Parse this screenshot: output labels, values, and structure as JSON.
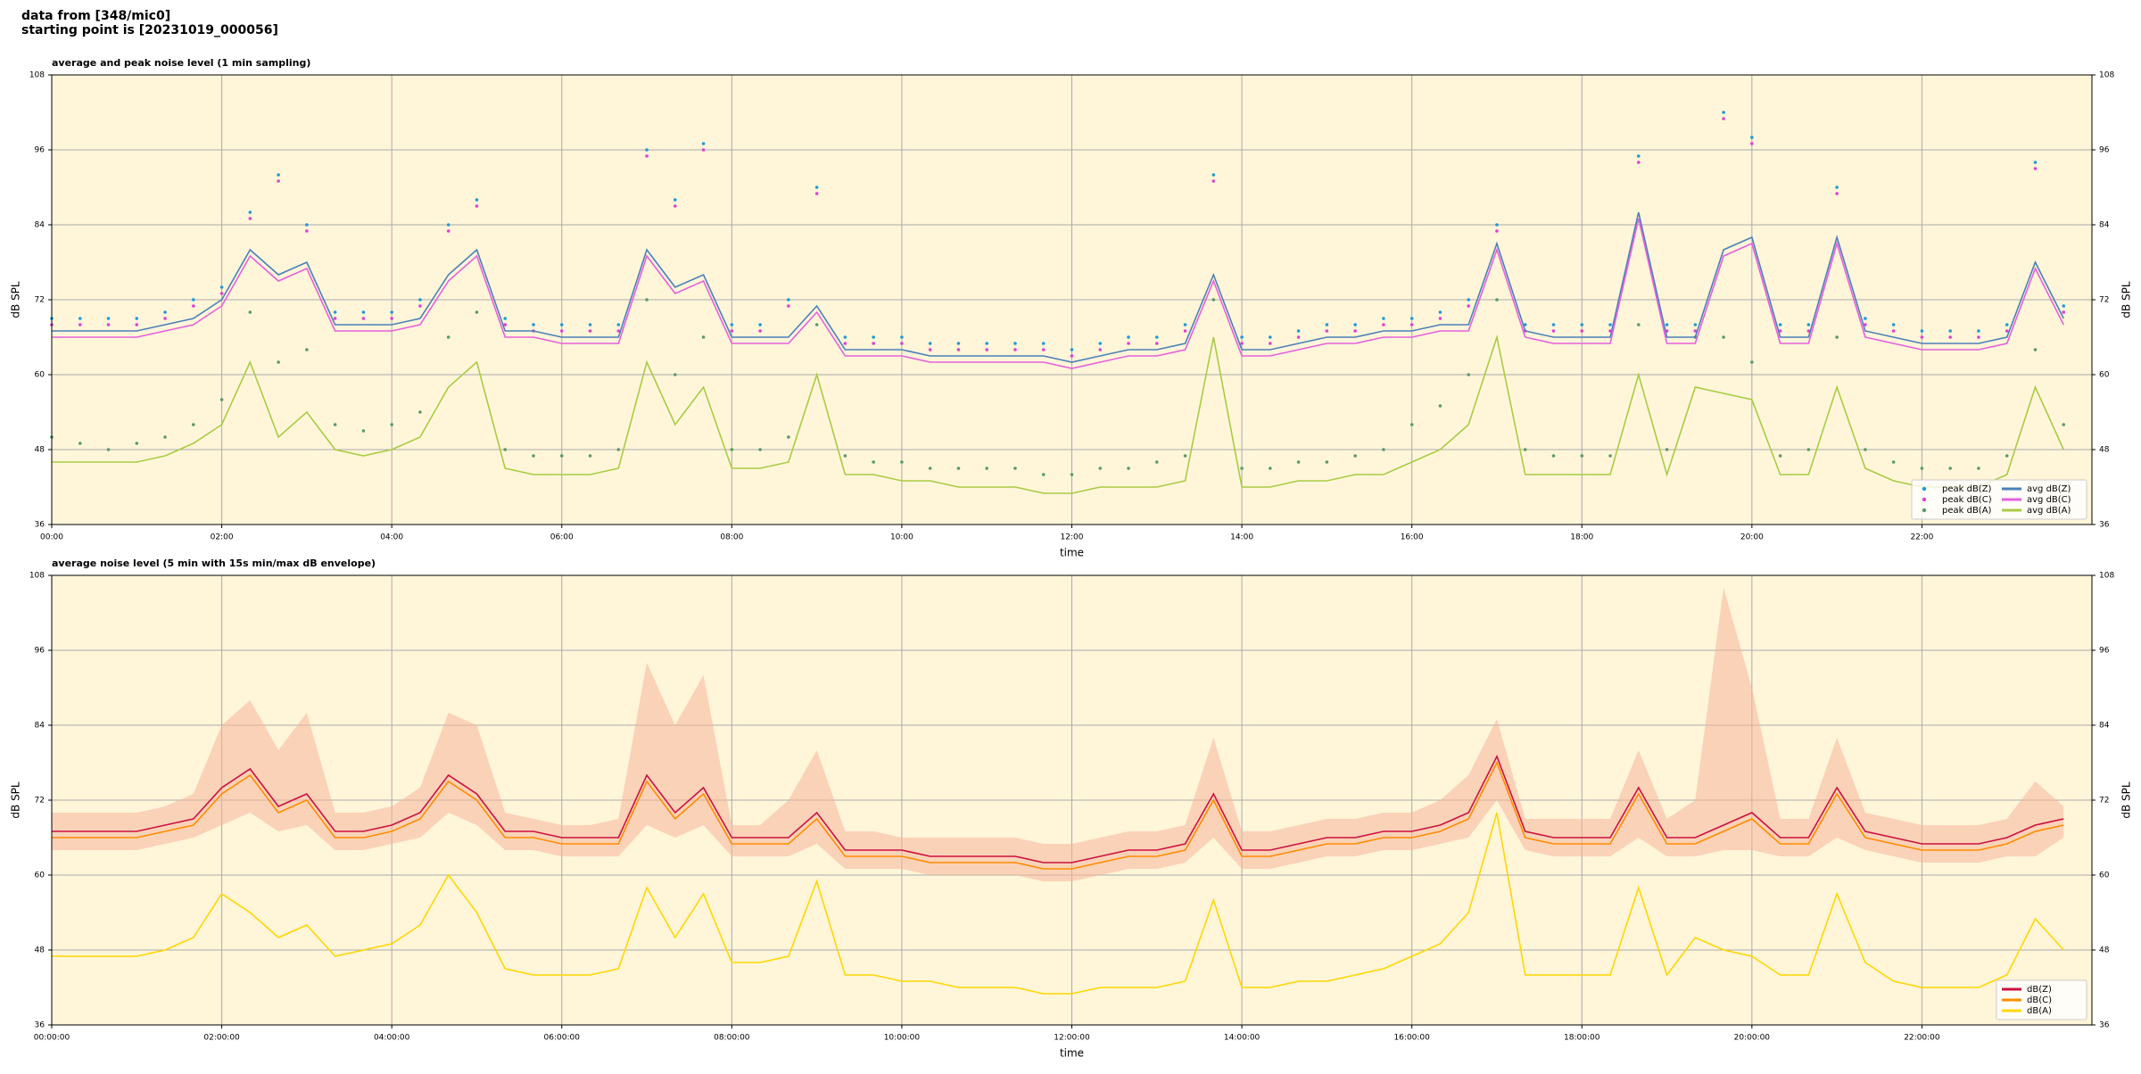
{
  "header": [
    "data from [348/mic0]",
    "starting point is [20231019_000056]"
  ],
  "chart_data": [
    {
      "type": "line",
      "title": "average and peak noise level (1 min sampling)",
      "xlabel": "time",
      "ylabel": "dB SPL",
      "legend": "lower right",
      "grid": true,
      "background": "#fff5d9",
      "xlim": [
        0,
        1440
      ],
      "ylim": [
        36,
        108
      ],
      "yticks": [
        36,
        48,
        60,
        72,
        84,
        96,
        108
      ],
      "xticks": [
        {
          "value": 0,
          "label": "00:00"
        },
        {
          "value": 120,
          "label": "02:00"
        },
        {
          "value": 240,
          "label": "04:00"
        },
        {
          "value": 360,
          "label": "06:00"
        },
        {
          "value": 480,
          "label": "08:00"
        },
        {
          "value": 600,
          "label": "10:00"
        },
        {
          "value": 720,
          "label": "12:00"
        },
        {
          "value": 840,
          "label": "14:00"
        },
        {
          "value": 960,
          "label": "16:00"
        },
        {
          "value": 1080,
          "label": "18:00"
        },
        {
          "value": 1200,
          "label": "20:00"
        },
        {
          "value": 1320,
          "label": "22:00"
        }
      ],
      "x": [
        0,
        20,
        40,
        60,
        80,
        100,
        120,
        140,
        160,
        180,
        200,
        220,
        240,
        260,
        280,
        300,
        320,
        340,
        360,
        380,
        400,
        420,
        440,
        460,
        480,
        500,
        520,
        540,
        560,
        580,
        600,
        620,
        640,
        660,
        680,
        700,
        720,
        740,
        760,
        780,
        800,
        820,
        840,
        860,
        880,
        900,
        920,
        940,
        960,
        980,
        1000,
        1020,
        1040,
        1060,
        1080,
        1100,
        1120,
        1140,
        1160,
        1180,
        1200,
        1220,
        1240,
        1260,
        1280,
        1300,
        1320,
        1340,
        1360,
        1380,
        1400,
        1420
      ],
      "series": [
        {
          "name": "peak dB(Z)",
          "marker": "dot",
          "color": "#1f9bd6",
          "values": [
            69,
            69,
            69,
            69,
            70,
            72,
            74,
            86,
            92,
            84,
            70,
            70,
            70,
            72,
            84,
            88,
            69,
            68,
            68,
            68,
            68,
            96,
            88,
            97,
            68,
            68,
            72,
            90,
            66,
            66,
            66,
            65,
            65,
            65,
            65,
            65,
            64,
            65,
            66,
            66,
            68,
            92,
            66,
            66,
            67,
            68,
            68,
            69,
            69,
            70,
            72,
            84,
            68,
            68,
            68,
            68,
            95,
            68,
            68,
            102,
            98,
            68,
            68,
            90,
            69,
            68,
            67,
            67,
            67,
            68,
            94,
            71
          ]
        },
        {
          "name": "peak dB(C)",
          "marker": "dot",
          "color": "#e040d0",
          "values": [
            68,
            68,
            68,
            68,
            69,
            71,
            73,
            85,
            91,
            83,
            69,
            69,
            69,
            71,
            83,
            87,
            68,
            67,
            67,
            67,
            67,
            95,
            87,
            96,
            67,
            67,
            71,
            89,
            65,
            65,
            65,
            64,
            64,
            64,
            64,
            64,
            63,
            64,
            65,
            65,
            67,
            91,
            65,
            65,
            66,
            67,
            67,
            68,
            68,
            69,
            71,
            83,
            67,
            67,
            67,
            67,
            94,
            67,
            67,
            101,
            97,
            67,
            67,
            89,
            68,
            67,
            66,
            66,
            66,
            67,
            93,
            70
          ]
        },
        {
          "name": "peak dB(A)",
          "marker": "dot",
          "color": "#5a9a6a",
          "values": [
            50,
            49,
            48,
            49,
            50,
            52,
            56,
            70,
            62,
            64,
            52,
            51,
            52,
            54,
            66,
            70,
            48,
            47,
            47,
            47,
            48,
            72,
            60,
            66,
            48,
            48,
            50,
            68,
            47,
            46,
            46,
            45,
            45,
            45,
            45,
            44,
            44,
            45,
            45,
            46,
            47,
            72,
            45,
            45,
            46,
            46,
            47,
            48,
            52,
            55,
            60,
            72,
            48,
            47,
            47,
            47,
            68,
            48,
            66,
            66,
            62,
            47,
            48,
            66,
            48,
            46,
            45,
            45,
            45,
            47,
            64,
            52
          ]
        },
        {
          "name": "avg dB(Z)",
          "marker": "line",
          "color": "#4a80b8",
          "values": [
            67,
            67,
            67,
            67,
            68,
            69,
            72,
            80,
            76,
            78,
            68,
            68,
            68,
            69,
            76,
            80,
            67,
            67,
            66,
            66,
            66,
            80,
            74,
            76,
            66,
            66,
            66,
            71,
            64,
            64,
            64,
            63,
            63,
            63,
            63,
            63,
            62,
            63,
            64,
            64,
            65,
            76,
            64,
            64,
            65,
            66,
            66,
            67,
            67,
            68,
            68,
            81,
            67,
            66,
            66,
            66,
            86,
            66,
            66,
            80,
            82,
            66,
            66,
            82,
            67,
            66,
            65,
            65,
            65,
            66,
            78,
            69
          ]
        },
        {
          "name": "avg dB(C)",
          "marker": "line",
          "color": "#e660dc",
          "values": [
            66,
            66,
            66,
            66,
            67,
            68,
            71,
            79,
            75,
            77,
            67,
            67,
            67,
            68,
            75,
            79,
            66,
            66,
            65,
            65,
            65,
            79,
            73,
            75,
            65,
            65,
            65,
            70,
            63,
            63,
            63,
            62,
            62,
            62,
            62,
            62,
            61,
            62,
            63,
            63,
            64,
            75,
            63,
            63,
            64,
            65,
            65,
            66,
            66,
            67,
            67,
            80,
            66,
            65,
            65,
            65,
            85,
            65,
            65,
            79,
            81,
            65,
            65,
            81,
            66,
            65,
            64,
            64,
            64,
            65,
            77,
            68
          ]
        },
        {
          "name": "avg dB(A)",
          "marker": "line",
          "color": "#a8cc44",
          "values": [
            46,
            46,
            46,
            46,
            47,
            49,
            52,
            62,
            50,
            54,
            48,
            47,
            48,
            50,
            58,
            62,
            45,
            44,
            44,
            44,
            45,
            62,
            52,
            58,
            45,
            45,
            46,
            60,
            44,
            44,
            43,
            43,
            42,
            42,
            42,
            41,
            41,
            42,
            42,
            42,
            43,
            66,
            42,
            42,
            43,
            43,
            44,
            44,
            46,
            48,
            52,
            66,
            44,
            44,
            44,
            44,
            60,
            44,
            58,
            57,
            56,
            44,
            44,
            58,
            45,
            43,
            42,
            42,
            42,
            44,
            58,
            48
          ]
        }
      ]
    },
    {
      "type": "line",
      "title": "average noise level (5 min with 15s min/max dB envelope)",
      "xlabel": "time",
      "ylabel": "dB SPL",
      "legend": "lower right",
      "grid": true,
      "background": "#fff5d9",
      "xlim": [
        0,
        1440
      ],
      "ylim": [
        36,
        108
      ],
      "yticks": [
        36,
        48,
        60,
        72,
        84,
        96,
        108
      ],
      "xticks": [
        {
          "value": 0,
          "label": "00:00:00"
        },
        {
          "value": 120,
          "label": "02:00:00"
        },
        {
          "value": 240,
          "label": "04:00:00"
        },
        {
          "value": 360,
          "label": "06:00:00"
        },
        {
          "value": 480,
          "label": "08:00:00"
        },
        {
          "value": 600,
          "label": "10:00:00"
        },
        {
          "value": 720,
          "label": "12:00:00"
        },
        {
          "value": 840,
          "label": "14:00:00"
        },
        {
          "value": 960,
          "label": "16:00:00"
        },
        {
          "value": 1080,
          "label": "18:00:00"
        },
        {
          "value": 1200,
          "label": "20:00:00"
        },
        {
          "value": 1320,
          "label": "22:00:00"
        }
      ],
      "x": [
        0,
        20,
        40,
        60,
        80,
        100,
        120,
        140,
        160,
        180,
        200,
        220,
        240,
        260,
        280,
        300,
        320,
        340,
        360,
        380,
        400,
        420,
        440,
        460,
        480,
        500,
        520,
        540,
        560,
        580,
        600,
        620,
        640,
        660,
        680,
        700,
        720,
        740,
        760,
        780,
        800,
        820,
        840,
        860,
        880,
        900,
        920,
        940,
        960,
        980,
        1000,
        1020,
        1040,
        1060,
        1080,
        1100,
        1120,
        1140,
        1160,
        1180,
        1200,
        1220,
        1240,
        1260,
        1280,
        1300,
        1320,
        1340,
        1360,
        1380,
        1400,
        1420
      ],
      "envelope": {
        "color": "#f5b59a",
        "min": [
          64,
          64,
          64,
          64,
          65,
          66,
          68,
          70,
          67,
          68,
          64,
          64,
          65,
          66,
          70,
          68,
          64,
          64,
          63,
          63,
          63,
          68,
          66,
          68,
          63,
          63,
          63,
          65,
          61,
          61,
          61,
          60,
          60,
          60,
          60,
          59,
          59,
          60,
          61,
          61,
          62,
          66,
          61,
          61,
          62,
          63,
          63,
          64,
          64,
          65,
          66,
          72,
          64,
          63,
          63,
          63,
          66,
          63,
          63,
          64,
          64,
          63,
          63,
          66,
          64,
          63,
          62,
          62,
          62,
          63,
          63,
          66
        ],
        "max": [
          70,
          70,
          70,
          70,
          71,
          73,
          84,
          88,
          80,
          86,
          70,
          70,
          71,
          74,
          86,
          84,
          70,
          69,
          68,
          68,
          69,
          94,
          84,
          92,
          68,
          68,
          72,
          80,
          67,
          67,
          66,
          66,
          66,
          66,
          66,
          65,
          65,
          66,
          67,
          67,
          68,
          82,
          67,
          67,
          68,
          69,
          69,
          70,
          70,
          72,
          76,
          85,
          69,
          69,
          69,
          69,
          80,
          69,
          72,
          106,
          90,
          69,
          69,
          82,
          70,
          69,
          68,
          68,
          68,
          69,
          75,
          71
        ]
      },
      "series": [
        {
          "name": "dB(Z)",
          "color": "#cc1040",
          "values": [
            67,
            67,
            67,
            67,
            68,
            69,
            74,
            77,
            71,
            73,
            67,
            67,
            68,
            70,
            76,
            73,
            67,
            67,
            66,
            66,
            66,
            76,
            70,
            74,
            66,
            66,
            66,
            70,
            64,
            64,
            64,
            63,
            63,
            63,
            63,
            62,
            62,
            63,
            64,
            64,
            65,
            73,
            64,
            64,
            65,
            66,
            66,
            67,
            67,
            68,
            70,
            79,
            67,
            66,
            66,
            66,
            74,
            66,
            66,
            68,
            70,
            66,
            66,
            74,
            67,
            66,
            65,
            65,
            65,
            66,
            68,
            69
          ]
        },
        {
          "name": "dB(C)",
          "color": "#ff8c00",
          "values": [
            66,
            66,
            66,
            66,
            67,
            68,
            73,
            76,
            70,
            72,
            66,
            66,
            67,
            69,
            75,
            72,
            66,
            66,
            65,
            65,
            65,
            75,
            69,
            73,
            65,
            65,
            65,
            69,
            63,
            63,
            63,
            62,
            62,
            62,
            62,
            61,
            61,
            62,
            63,
            63,
            64,
            72,
            63,
            63,
            64,
            65,
            65,
            66,
            66,
            67,
            69,
            78,
            66,
            65,
            65,
            65,
            73,
            65,
            65,
            67,
            69,
            65,
            65,
            73,
            66,
            65,
            64,
            64,
            64,
            65,
            67,
            68
          ]
        },
        {
          "name": "dB(A)",
          "color": "#ffd700",
          "values": [
            47,
            47,
            47,
            47,
            48,
            50,
            57,
            54,
            50,
            52,
            47,
            48,
            49,
            52,
            60,
            54,
            45,
            44,
            44,
            44,
            45,
            58,
            50,
            57,
            46,
            46,
            47,
            59,
            44,
            44,
            43,
            43,
            42,
            42,
            42,
            41,
            41,
            42,
            42,
            42,
            43,
            56,
            42,
            42,
            43,
            43,
            44,
            45,
            47,
            49,
            54,
            70,
            44,
            44,
            44,
            44,
            58,
            44,
            50,
            48,
            47,
            44,
            44,
            57,
            46,
            43,
            42,
            42,
            42,
            44,
            53,
            48
          ]
        }
      ]
    }
  ]
}
